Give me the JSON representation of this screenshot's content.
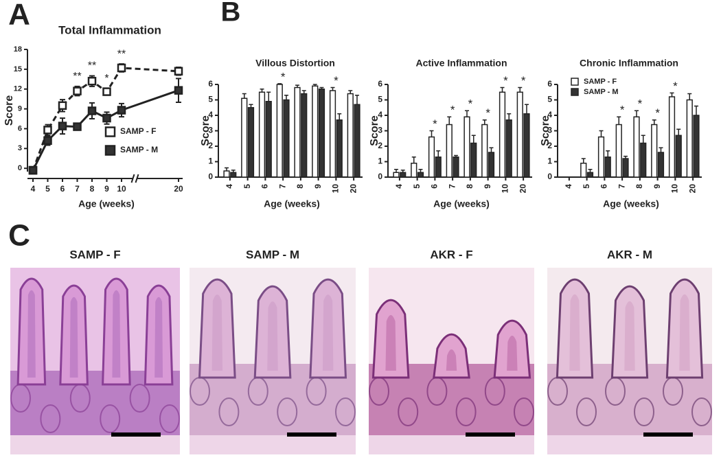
{
  "panels": {
    "a": "A",
    "b": "B",
    "c": "C"
  },
  "images": [
    {
      "title": "SAMP - F"
    },
    {
      "title": "SAMP - M"
    },
    {
      "title": "AKR - F"
    },
    {
      "title": "AKR - M"
    }
  ],
  "chart_data": [
    {
      "type": "line",
      "title": "Total Inflammation",
      "x_label": "Age (weeks)",
      "y_label": "Score",
      "categories": [
        "4",
        "5",
        "6",
        "7",
        "8",
        "9",
        "10",
        "20"
      ],
      "ylim": [
        -0.5,
        18
      ],
      "yticks": [
        0,
        3,
        6,
        9,
        12,
        15,
        18
      ],
      "legend": "lower right",
      "edgecolor": "#222222",
      "series": [
        {
          "name": "SAMP - F",
          "color": "#ffffff",
          "linestyle": "dashed",
          "values": [
            -0.3,
            5.8,
            9.5,
            11.7,
            13.2,
            11.6,
            15.2,
            14.7
          ],
          "errors": [
            0.3,
            0.8,
            0.9,
            0.7,
            0.8,
            0.5,
            0.6,
            0.6
          ]
        },
        {
          "name": "SAMP - M",
          "color": "#333333",
          "linestyle": "solid",
          "values": [
            -0.3,
            4.2,
            6.4,
            6.3,
            8.7,
            7.6,
            8.8,
            11.8
          ],
          "errors": [
            0.3,
            0.7,
            1.2,
            0.5,
            1.2,
            0.9,
            1.0,
            1.8
          ]
        }
      ],
      "significance": [
        null,
        null,
        null,
        "**",
        "**",
        "*",
        "**",
        null
      ]
    },
    {
      "type": "bar",
      "title": "Villous Distortion",
      "x_label": "Age (weeks)",
      "y_label": "Score",
      "categories": [
        "4",
        "5",
        "6",
        "7",
        "8",
        "9",
        "10",
        "20"
      ],
      "ylim": [
        0,
        6
      ],
      "yticks": [
        0,
        1,
        2,
        3,
        4,
        5,
        6
      ],
      "legend": false,
      "edgecolor": "#222222",
      "series": [
        {
          "name": "SAMP - F",
          "color": "#ffffff",
          "values": [
            0.4,
            5.1,
            5.5,
            6.0,
            5.8,
            5.9,
            5.6,
            5.4
          ],
          "errors": [
            0.2,
            0.3,
            0.2,
            0.05,
            0.15,
            0.1,
            0.2,
            0.2
          ]
        },
        {
          "name": "SAMP - M",
          "color": "#333333",
          "values": [
            0.3,
            4.5,
            4.9,
            5.0,
            5.4,
            5.7,
            3.7,
            4.7
          ],
          "errors": [
            0.15,
            0.2,
            0.6,
            0.3,
            0.2,
            0.1,
            0.4,
            0.6
          ]
        }
      ],
      "significance": [
        null,
        null,
        null,
        "*",
        null,
        null,
        "*",
        null
      ]
    },
    {
      "type": "bar",
      "title": "Active Inflammation",
      "x_label": "Age (weeks)",
      "y_label": "Score",
      "categories": [
        "4",
        "5",
        "6",
        "7",
        "8",
        "9",
        "10",
        "20"
      ],
      "ylim": [
        0,
        6
      ],
      "yticks": [
        0,
        1,
        2,
        3,
        4,
        5,
        6
      ],
      "legend": false,
      "edgecolor": "#222222",
      "series": [
        {
          "name": "SAMP - F",
          "color": "#ffffff",
          "values": [
            0.3,
            0.9,
            2.6,
            3.4,
            3.9,
            3.4,
            5.5,
            5.5
          ],
          "errors": [
            0.2,
            0.4,
            0.4,
            0.5,
            0.4,
            0.3,
            0.3,
            0.3
          ]
        },
        {
          "name": "SAMP - M",
          "color": "#333333",
          "values": [
            0.3,
            0.3,
            1.3,
            1.3,
            2.2,
            1.6,
            3.7,
            4.1
          ],
          "errors": [
            0.15,
            0.2,
            0.4,
            0.1,
            0.5,
            0.3,
            0.4,
            0.6
          ]
        }
      ],
      "significance": [
        null,
        null,
        "*",
        "*",
        "*",
        "*",
        "*",
        "*"
      ]
    },
    {
      "type": "bar",
      "title": "Chronic Inflammation",
      "x_label": "Age (weeks)",
      "y_label": "Score",
      "categories": [
        "4",
        "5",
        "6",
        "7",
        "8",
        "9",
        "10",
        "20"
      ],
      "ylim": [
        0,
        6
      ],
      "yticks": [
        0,
        1,
        2,
        3,
        4,
        5,
        6
      ],
      "legend": "upper left",
      "edgecolor": "#222222",
      "series": [
        {
          "name": "SAMP - F",
          "color": "#ffffff",
          "values": [
            0,
            0.9,
            2.6,
            3.4,
            3.9,
            3.4,
            5.2,
            5.0
          ],
          "errors": [
            0,
            0.3,
            0.4,
            0.5,
            0.4,
            0.3,
            0.25,
            0.4
          ]
        },
        {
          "name": "SAMP - M",
          "color": "#333333",
          "values": [
            0,
            0.3,
            1.3,
            1.2,
            2.2,
            1.6,
            2.7,
            4.0
          ],
          "errors": [
            0,
            0.2,
            0.4,
            0.15,
            0.5,
            0.3,
            0.4,
            0.6
          ]
        }
      ],
      "significance": [
        null,
        null,
        null,
        "*",
        "*",
        "*",
        "*",
        null
      ]
    }
  ]
}
